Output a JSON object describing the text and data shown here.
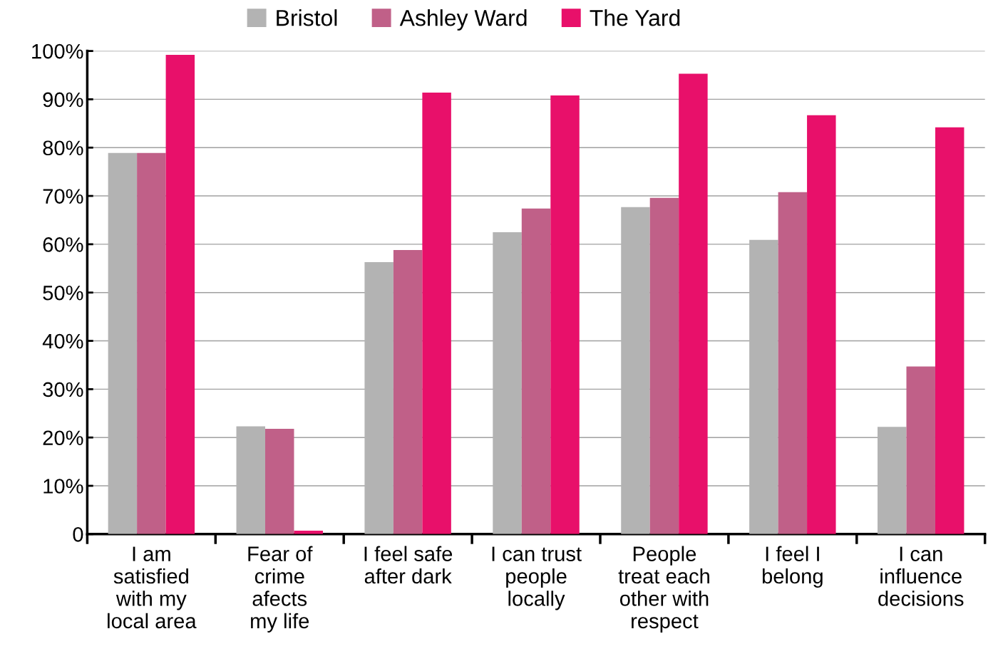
{
  "chart_data": {
    "type": "bar",
    "categories": [
      "I am\nsatisfied\nwith my\nlocal area",
      "Fear of\ncrime\nafects\nmy life",
      "I feel safe\nafter dark",
      "I can trust\npeople\nlocally",
      "People\ntreat each\nother with\nrespect",
      "I feel I\nbelong",
      "I can\ninfluence\ndecisions"
    ],
    "series": [
      {
        "name": "Bristol",
        "color": "#b3b3b3",
        "values": [
          78.9,
          22.3,
          56.3,
          62.5,
          67.7,
          60.9,
          22.2
        ]
      },
      {
        "name": "Ashley Ward",
        "color": "#c06088",
        "values": [
          78.9,
          21.8,
          58.8,
          67.4,
          69.6,
          70.8,
          34.7
        ]
      },
      {
        "name": "The Yard",
        "color": "#e8106a",
        "values": [
          99.2,
          0.7,
          91.4,
          90.8,
          95.3,
          86.7,
          84.2
        ]
      }
    ],
    "ylim": [
      0,
      100
    ],
    "yticks": [
      {
        "value": 0,
        "label": "0"
      },
      {
        "value": 10,
        "label": "10%"
      },
      {
        "value": 20,
        "label": "20%"
      },
      {
        "value": 30,
        "label": "30%"
      },
      {
        "value": 40,
        "label": "40%"
      },
      {
        "value": 50,
        "label": "50%"
      },
      {
        "value": 60,
        "label": "60%"
      },
      {
        "value": 70,
        "label": "70%"
      },
      {
        "value": 80,
        "label": "80%"
      },
      {
        "value": 90,
        "label": "90%"
      },
      {
        "value": 100,
        "label": "100%"
      }
    ],
    "grid": "y",
    "legend": "top"
  }
}
